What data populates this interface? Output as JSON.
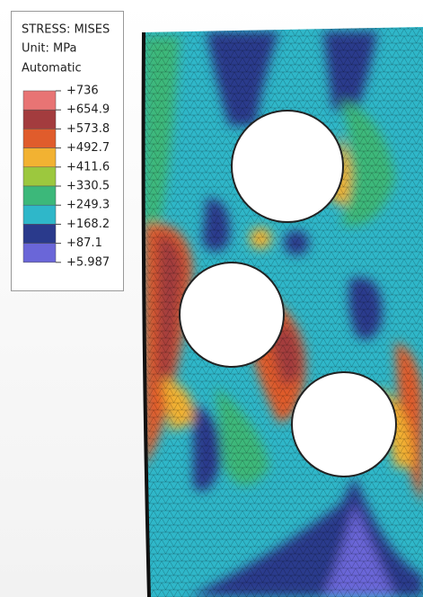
{
  "legend": {
    "title": "STRESS: MISES",
    "unit": "Unit: MPa",
    "mode": "Automatic",
    "labels": [
      "+736",
      "+654.9",
      "+573.8",
      "+492.7",
      "+411.6",
      "+330.5",
      "+249.3",
      "+168.2",
      "+87.1",
      "+5.987"
    ],
    "colors": [
      "#e87474",
      "#a33c3e",
      "#e05c2c",
      "#f2b232",
      "#9cc83e",
      "#3cb87a",
      "#2fb7c9",
      "#2a3a8c",
      "#6a66d8"
    ]
  }
}
